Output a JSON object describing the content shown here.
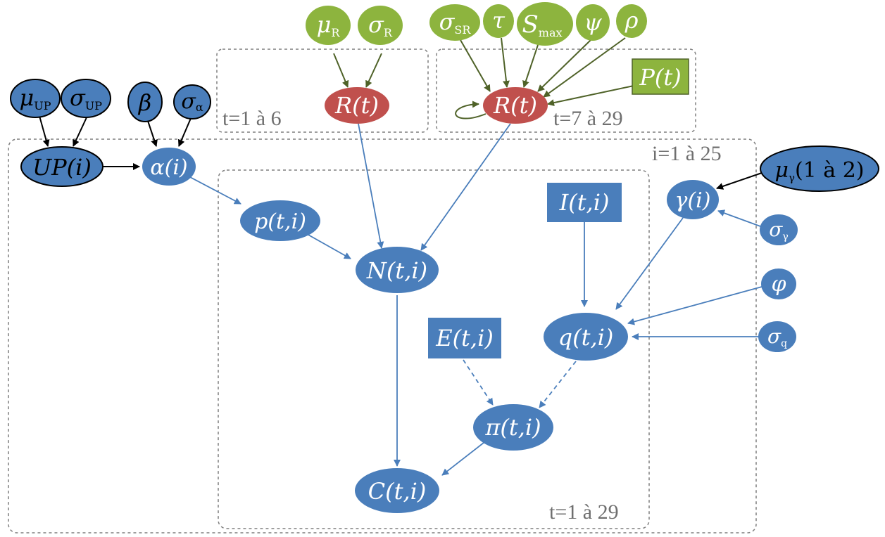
{
  "colors": {
    "blue": "#4a7ebb",
    "green": "#8db43e",
    "red": "#c0504d",
    "dark": "#1f1f1f",
    "plate": "#7f7f7f",
    "text_light": "#ffffff",
    "text_dark": "#000000"
  },
  "plates": {
    "t_1_6": "t=1 à 6",
    "t_7_29": "t=7 à 29",
    "i_1_25": "i=1 à 25",
    "t_1_29": "t=1 à 29"
  },
  "nodes": {
    "mu_up": "μUP",
    "sigma_up": "σUP",
    "beta": "β",
    "sigma_alpha": "σα",
    "up_i": "UP(i)",
    "alpha_i": "α(i)",
    "mu_r": "μR",
    "sigma_r": "σR",
    "r_t_a": "R(t)",
    "sigma_sr": "σSR",
    "tau": "τ",
    "s_max": "Smax",
    "psi": "ψ",
    "rho": "ρ",
    "p_t": "P(t)",
    "r_t_b": "R(t)",
    "mu_gamma": "μγ(1 à 2)",
    "gamma_i": "γ(i)",
    "sigma_gamma": "σγ",
    "phi": "φ",
    "sigma_q": "σq",
    "p_ti": "p(t,i)",
    "n_ti": "N(t,i)",
    "i_ti": "I(t,i)",
    "q_ti": "q(t,i)",
    "e_ti": "E(t,i)",
    "pi_ti": "π(t,i)",
    "c_ti": "C(t,i)"
  }
}
